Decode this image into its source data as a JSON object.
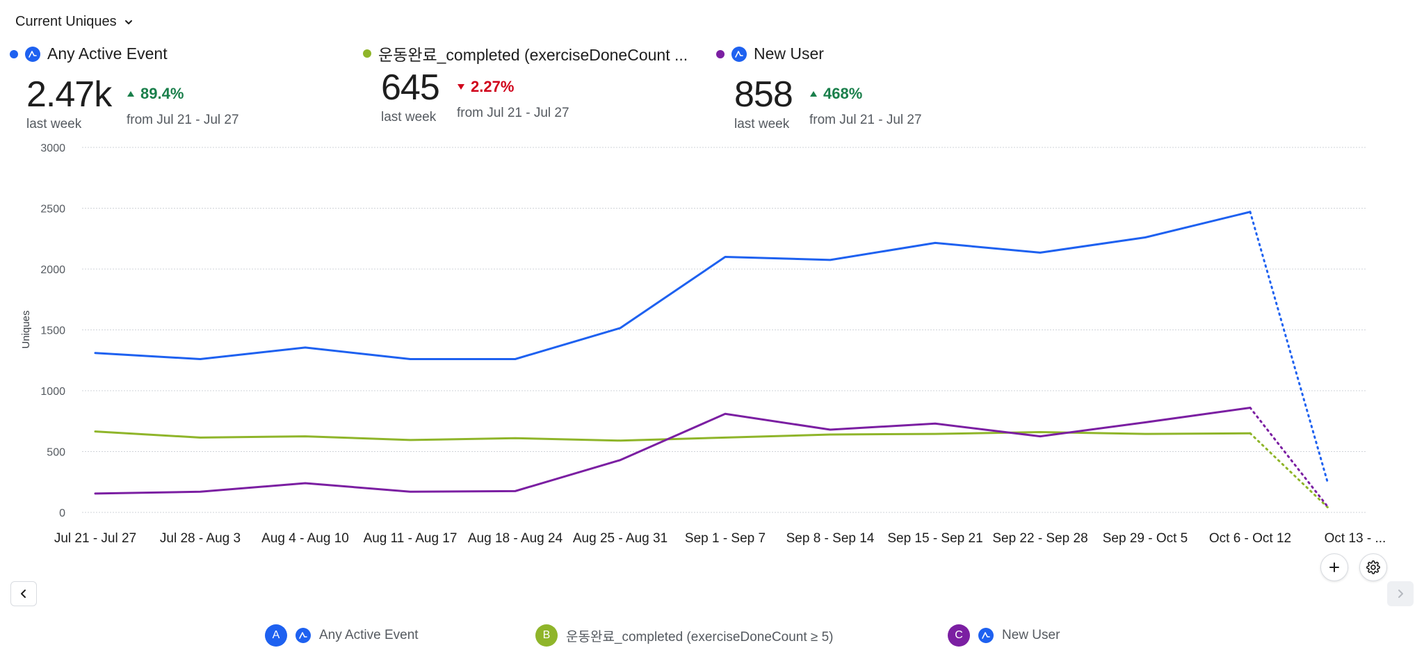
{
  "metric_selector": {
    "label": "Current Uniques"
  },
  "summary": [
    {
      "name": "Any Active Event",
      "value": "2.47k",
      "change": "89.4%",
      "direction": "up",
      "period": "last week",
      "compare": "from Jul 21 - Jul 27",
      "color": "#1e61f0",
      "icon": "amplitude-icon"
    },
    {
      "name": "운동완료_completed (exerciseDoneCount ...",
      "value": "645",
      "change": "2.27%",
      "direction": "down",
      "period": "last week",
      "compare": "from Jul 21 - Jul 27",
      "color": "#8fb52a"
    },
    {
      "name": "New User",
      "value": "858",
      "change": "468%",
      "direction": "up",
      "period": "last week",
      "compare": "from Jul 21 - Jul 27",
      "color": "#7b1fa2",
      "icon": "amplitude-icon"
    }
  ],
  "chart_data": {
    "type": "line",
    "ylabel": "Uniques",
    "ylim": [
      0,
      3000
    ],
    "yticks": [
      0,
      500,
      1000,
      1500,
      2000,
      2500,
      3000
    ],
    "grid": true,
    "categories": [
      "Jul 21 - Jul 27",
      "Jul 28 - Aug 3",
      "Aug 4 - Aug 10",
      "Aug 11 - Aug 17",
      "Aug 18 - Aug 24",
      "Aug 25 - Aug 31",
      "Sep 1 - Sep 7",
      "Sep 8 - Sep 14",
      "Sep 15 - Sep 21",
      "Sep 22 - Sep 28",
      "Sep 29 - Oct 5",
      "Oct 6 - Oct 12",
      "Oct 13 - ..."
    ],
    "incomplete_from_index": 11,
    "series": [
      {
        "name": "Any Active Event",
        "color": "#1e61f0",
        "values": [
          1310,
          1260,
          1355,
          1260,
          1260,
          1515,
          2100,
          2075,
          2215,
          2135,
          2260,
          2470,
          240
        ]
      },
      {
        "name": "운동완료_completed (exerciseDoneCount ≥ 5)",
        "color": "#8fb52a",
        "values": [
          665,
          615,
          625,
          595,
          610,
          590,
          615,
          640,
          645,
          660,
          645,
          650,
          40
        ]
      },
      {
        "name": "New User",
        "color": "#7b1fa2",
        "values": [
          155,
          170,
          240,
          170,
          175,
          430,
          810,
          680,
          730,
          625,
          740,
          860,
          45
        ]
      }
    ]
  },
  "legend": [
    {
      "badge": "A",
      "label": "Any Active Event",
      "color": "#1e61f0",
      "icon": "amplitude-icon"
    },
    {
      "badge": "B",
      "label": "운동완료_completed (exerciseDoneCount ≥ 5)",
      "color": "#8fb52a"
    },
    {
      "badge": "C",
      "label": "New User",
      "color": "#7b1fa2",
      "icon": "amplitude-icon"
    }
  ]
}
